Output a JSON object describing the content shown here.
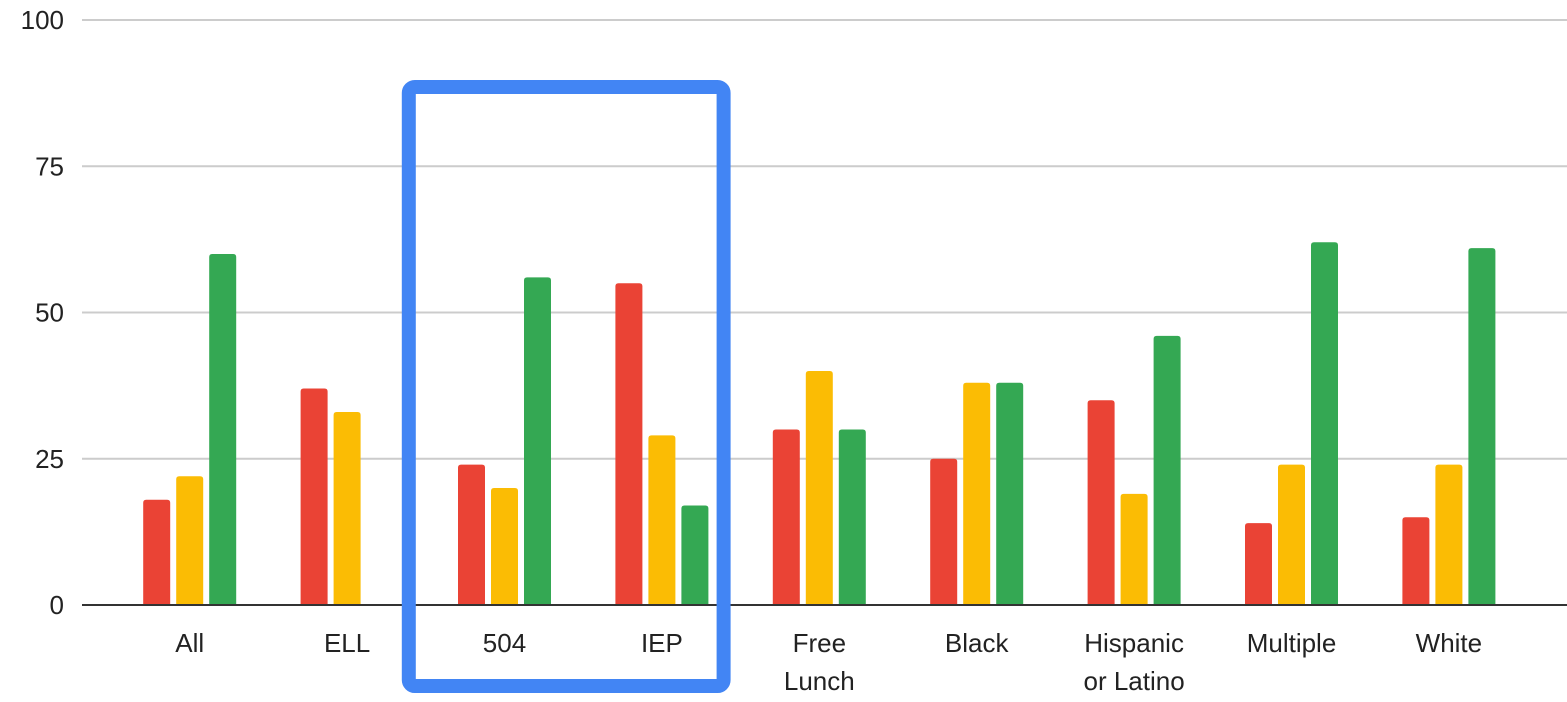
{
  "chart_data": {
    "type": "bar",
    "categories": [
      [
        "All"
      ],
      [
        "ELL"
      ],
      [
        "504"
      ],
      [
        "IEP"
      ],
      [
        "Free",
        "Lunch"
      ],
      [
        "Black"
      ],
      [
        "Hispanic",
        "or Latino"
      ],
      [
        "Multiple"
      ],
      [
        "White"
      ]
    ],
    "series": [
      {
        "color": "#ea4335",
        "values": [
          18,
          37,
          24,
          55,
          30,
          25,
          35,
          14,
          15
        ]
      },
      {
        "color": "#fbbc04",
        "values": [
          22,
          33,
          20,
          29,
          40,
          38,
          19,
          24,
          24
        ]
      },
      {
        "color": "#34a853",
        "values": [
          60,
          0,
          56,
          17,
          30,
          38,
          46,
          62,
          61
        ]
      }
    ],
    "ylim": [
      0,
      100
    ],
    "yticks": [
      0,
      25,
      50,
      75,
      100
    ],
    "grid": true,
    "legend": "none",
    "highlight": {
      "categories": [
        "504",
        "IEP"
      ],
      "color": "#4285f4"
    }
  }
}
